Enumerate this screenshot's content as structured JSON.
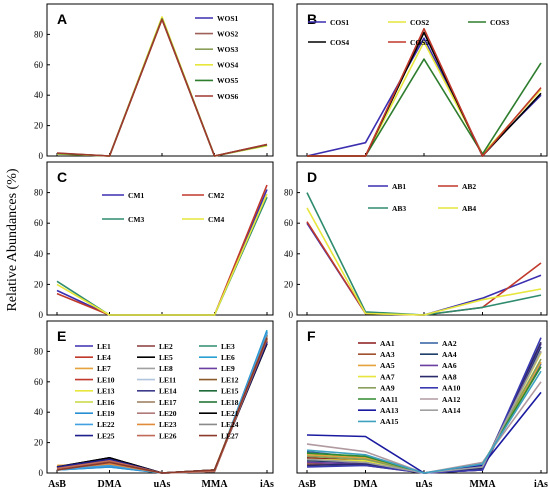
{
  "figure": {
    "ylabel": "Relative Abundances (%)",
    "xcategories": [
      "AsB",
      "DMA",
      "uAs",
      "MMA",
      "iAs"
    ]
  },
  "chart_data": [
    {
      "type": "line",
      "panel": "A",
      "ylim": [
        0,
        100
      ],
      "yticks": [
        0,
        20,
        40,
        60,
        80
      ],
      "show_xticklabels": false,
      "categories": [
        "AsB",
        "DMA",
        "uAs",
        "MMA",
        "iAs"
      ],
      "legend": {
        "placement": "top-right",
        "columns": 1
      },
      "series": [
        {
          "name": "WOS1",
          "color": "#3b2fb0",
          "values": [
            1.5,
            0,
            91,
            0,
            7
          ]
        },
        {
          "name": "WOS2",
          "color": "#a0605a",
          "values": [
            1.8,
            0,
            90,
            0,
            7.5
          ]
        },
        {
          "name": "WOS3",
          "color": "#8aa05a",
          "values": [
            1.6,
            0,
            90.5,
            0,
            7.2
          ]
        },
        {
          "name": "WOS4",
          "color": "#e6e63c",
          "values": [
            1.4,
            0,
            91.5,
            0,
            6.8
          ]
        },
        {
          "name": "WOS5",
          "color": "#2e7d2e",
          "values": [
            1.7,
            0,
            90.2,
            0,
            7.3
          ]
        },
        {
          "name": "WOS6",
          "color": "#a0382e",
          "values": [
            2.0,
            0,
            89.8,
            0,
            7.6
          ]
        }
      ]
    },
    {
      "type": "line",
      "panel": "B",
      "ylim": [
        0,
        80
      ],
      "yticks": [],
      "show_xticklabels": false,
      "categories": [
        "AsB",
        "DMA",
        "uAs",
        "MMA",
        "iAs"
      ],
      "legend": {
        "placement": "top",
        "columns": 3
      },
      "series": [
        {
          "name": "COS1",
          "color": "#3b2fb0",
          "values": [
            0,
            7,
            62,
            1,
            32
          ]
        },
        {
          "name": "COS2",
          "color": "#e6e63c",
          "values": [
            0,
            0,
            60,
            1,
            35
          ]
        },
        {
          "name": "COS3",
          "color": "#2e7d2e",
          "values": [
            0,
            0,
            51,
            1,
            49
          ]
        },
        {
          "name": "COS4",
          "color": "#000000",
          "values": [
            0,
            0,
            65,
            0,
            33
          ]
        },
        {
          "name": "COS5",
          "color": "#c0392b",
          "values": [
            0,
            0,
            67,
            0,
            36
          ]
        }
      ]
    },
    {
      "type": "line",
      "panel": "C",
      "ylim": [
        0,
        100
      ],
      "yticks": [
        0,
        20,
        40,
        60,
        80
      ],
      "show_xticklabels": false,
      "categories": [
        "AsB",
        "DMA",
        "uAs",
        "MMA",
        "iAs"
      ],
      "legend": {
        "placement": "top",
        "columns": 2
      },
      "series": [
        {
          "name": "CM1",
          "color": "#3b2fb0",
          "values": [
            16,
            0,
            0,
            0,
            82
          ]
        },
        {
          "name": "CM2",
          "color": "#c0392b",
          "values": [
            14,
            0,
            0,
            0,
            85
          ]
        },
        {
          "name": "CM3",
          "color": "#2e8b6e",
          "values": [
            22,
            0,
            0,
            0,
            77
          ]
        },
        {
          "name": "CM4",
          "color": "#e6e63c",
          "values": [
            20,
            0,
            0,
            0,
            79
          ]
        }
      ]
    },
    {
      "type": "line",
      "panel": "D",
      "ylim": [
        0,
        100
      ],
      "yticks": [
        0,
        20,
        40,
        60,
        80
      ],
      "show_xticklabels": false,
      "categories": [
        "AsB",
        "DMA",
        "uAs",
        "MMA",
        "iAs"
      ],
      "legend": {
        "placement": "top-right",
        "columns": 2
      },
      "series": [
        {
          "name": "AB1",
          "color": "#3b2fb0",
          "values": [
            60,
            1,
            0,
            11,
            26
          ]
        },
        {
          "name": "AB2",
          "color": "#c0392b",
          "values": [
            61,
            1,
            0,
            5,
            34
          ]
        },
        {
          "name": "AB3",
          "color": "#2e8b6e",
          "values": [
            80,
            2,
            0,
            5,
            13
          ]
        },
        {
          "name": "AB4",
          "color": "#e6e63c",
          "values": [
            70,
            1,
            0,
            10,
            17
          ]
        }
      ]
    },
    {
      "type": "line",
      "panel": "E",
      "ylim": [
        0,
        100
      ],
      "yticks": [
        0,
        20,
        40,
        60,
        80
      ],
      "show_xticklabels": true,
      "categories": [
        "AsB",
        "DMA",
        "uAs",
        "MMA",
        "iAs"
      ],
      "legend": {
        "placement": "top-left",
        "columns": 3
      },
      "series": [
        {
          "name": "LE1",
          "color": "#3b2fb0",
          "values": [
            3,
            7,
            0,
            1,
            90
          ]
        },
        {
          "name": "LE2",
          "color": "#8b3a3a",
          "values": [
            4,
            9,
            0,
            2,
            87
          ]
        },
        {
          "name": "LE3",
          "color": "#2e8b6e",
          "values": [
            2,
            5,
            0,
            1,
            93
          ]
        },
        {
          "name": "LE4",
          "color": "#c0392b",
          "values": [
            3,
            8,
            0,
            1,
            88
          ]
        },
        {
          "name": "LE5",
          "color": "#000000",
          "values": [
            4,
            10,
            0,
            2,
            86
          ]
        },
        {
          "name": "LE6",
          "color": "#2aa0d0",
          "values": [
            2,
            4,
            0,
            1,
            94
          ]
        },
        {
          "name": "LE7",
          "color": "#e6a23c",
          "values": [
            5,
            6,
            0,
            2,
            88
          ]
        },
        {
          "name": "LE8",
          "color": "#a0a0a0",
          "values": [
            3,
            7,
            0,
            1,
            90
          ]
        },
        {
          "name": "LE9",
          "color": "#6a3fa0",
          "values": [
            2,
            6,
            0,
            1,
            91
          ]
        },
        {
          "name": "LE10",
          "color": "#c0392b",
          "values": [
            4,
            8,
            0,
            2,
            87
          ]
        },
        {
          "name": "LE11",
          "color": "#b0c4de",
          "values": [
            3,
            5,
            0,
            1,
            92
          ]
        },
        {
          "name": "LE12",
          "color": "#8b5a2b",
          "values": [
            2,
            6,
            0,
            1,
            91
          ]
        },
        {
          "name": "LE13",
          "color": "#e6e63c",
          "values": [
            4,
            7,
            0,
            2,
            88
          ]
        },
        {
          "name": "LE14",
          "color": "#3d3d8b",
          "values": [
            3,
            9,
            0,
            1,
            88
          ]
        },
        {
          "name": "LE15",
          "color": "#1f6b3a",
          "values": [
            2,
            5,
            0,
            1,
            92
          ]
        },
        {
          "name": "LE16",
          "color": "#c8d840",
          "values": [
            3,
            6,
            0,
            2,
            90
          ]
        },
        {
          "name": "LE17",
          "color": "#9a7a5a",
          "values": [
            4,
            7,
            0,
            1,
            89
          ]
        },
        {
          "name": "LE18",
          "color": "#1a6b2a",
          "values": [
            3,
            8,
            0,
            2,
            88
          ]
        },
        {
          "name": "LE19",
          "color": "#2a8fd0",
          "values": [
            2,
            4,
            0,
            1,
            93
          ]
        },
        {
          "name": "LE20",
          "color": "#b07a7a",
          "values": [
            3,
            6,
            0,
            1,
            90
          ]
        },
        {
          "name": "LE21",
          "color": "#000000",
          "values": [
            4,
            10,
            0,
            2,
            85
          ]
        },
        {
          "name": "LE22",
          "color": "#40a0e0",
          "values": [
            2,
            5,
            0,
            1,
            92
          ]
        },
        {
          "name": "LE23",
          "color": "#e08a3c",
          "values": [
            3,
            6,
            0,
            2,
            89
          ]
        },
        {
          "name": "LE24",
          "color": "#8a8a8a",
          "values": [
            2,
            7,
            0,
            1,
            90
          ]
        },
        {
          "name": "LE25",
          "color": "#1f1f8b",
          "values": [
            4,
            9,
            0,
            2,
            86
          ]
        },
        {
          "name": "LE26",
          "color": "#c06a5a",
          "values": [
            3,
            8,
            0,
            1,
            88
          ]
        },
        {
          "name": "LE27",
          "color": "#8b3a2a",
          "values": [
            2,
            7,
            0,
            2,
            89
          ]
        }
      ]
    },
    {
      "type": "line",
      "panel": "F",
      "ylim": [
        0,
        100
      ],
      "yticks": [],
      "show_xticklabels": true,
      "categories": [
        "AsB",
        "DMA",
        "uAs",
        "MMA",
        "iAs"
      ],
      "legend": {
        "placement": "top-left",
        "columns": 2
      },
      "series": [
        {
          "name": "AA1",
          "color": "#8b1a1a",
          "values": [
            10,
            8,
            0,
            2,
            80
          ]
        },
        {
          "name": "AA2",
          "color": "#2e5fa0",
          "values": [
            14,
            10,
            0,
            4,
            72
          ]
        },
        {
          "name": "AA3",
          "color": "#a0522d",
          "values": [
            6,
            5,
            0,
            3,
            86
          ]
        },
        {
          "name": "AA4",
          "color": "#1f3f6b",
          "values": [
            8,
            7,
            0,
            2,
            83
          ]
        },
        {
          "name": "AA5",
          "color": "#e6a23c",
          "values": [
            12,
            10,
            0,
            5,
            73
          ]
        },
        {
          "name": "AA6",
          "color": "#6a3fa0",
          "values": [
            7,
            6,
            0,
            2,
            85
          ]
        },
        {
          "name": "AA7",
          "color": "#e6e63c",
          "values": [
            9,
            8,
            0,
            4,
            79
          ]
        },
        {
          "name": "AA8",
          "color": "#2a2a6b",
          "values": [
            5,
            6,
            0,
            3,
            86
          ]
        },
        {
          "name": "AA9",
          "color": "#8aa05a",
          "values": [
            11,
            9,
            0,
            5,
            75
          ]
        },
        {
          "name": "AA10",
          "color": "#3a3ab0",
          "values": [
            4,
            5,
            0,
            2,
            89
          ]
        },
        {
          "name": "AA11",
          "color": "#2e8b2e",
          "values": [
            13,
            11,
            0,
            6,
            70
          ]
        },
        {
          "name": "AA12",
          "color": "#b09aa0",
          "values": [
            19,
            14,
            0,
            7,
            60
          ]
        },
        {
          "name": "AA13",
          "color": "#1a1aa0",
          "values": [
            25,
            24,
            0,
            5,
            53
          ]
        },
        {
          "name": "AA14",
          "color": "#a0a0a0",
          "values": [
            9,
            7,
            0,
            4,
            80
          ]
        },
        {
          "name": "AA15",
          "color": "#40a0c0",
          "values": [
            15,
            12,
            0,
            6,
            67
          ]
        }
      ]
    }
  ]
}
